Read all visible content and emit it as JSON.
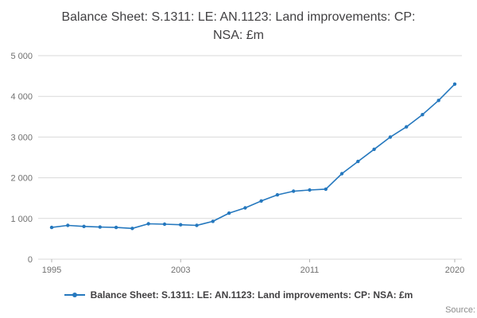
{
  "title": "Balance Sheet: S.1311: LE: AN.1123: Land improvements: CP: NSA: £m",
  "legend": {
    "label": "Balance Sheet: S.1311: LE: AN.1123: Land improvements: CP: NSA: £m"
  },
  "source_label": "Source:",
  "colors": {
    "line": "#2578be",
    "grid": "#d9d9d9",
    "tick_text": "#707070",
    "title_text": "#414042"
  },
  "chart_data": {
    "type": "line",
    "title": "Balance Sheet: S.1311: LE: AN.1123: Land improvements: CP: NSA: £m",
    "x": [
      1995,
      1996,
      1997,
      1998,
      1999,
      2000,
      2001,
      2002,
      2003,
      2004,
      2005,
      2006,
      2007,
      2008,
      2009,
      2010,
      2011,
      2012,
      2013,
      2014,
      2015,
      2016,
      2017,
      2018,
      2019,
      2020
    ],
    "series": [
      {
        "name": "Balance Sheet: S.1311: LE: AN.1123: Land improvements: CP: NSA: £m",
        "values": [
          780,
          830,
          805,
          790,
          780,
          755,
          870,
          860,
          845,
          830,
          930,
          1130,
          1260,
          1430,
          1580,
          1670,
          1700,
          1720,
          2100,
          2400,
          2700,
          3000,
          3250,
          3550,
          3900,
          4300
        ]
      }
    ],
    "xlabel": "",
    "ylabel": "",
    "ylim": [
      0,
      5000
    ],
    "ytick_step": 1000,
    "yticks": [
      0,
      1000,
      2000,
      3000,
      4000,
      5000
    ],
    "xticks": [
      1995,
      2003,
      2011,
      2020
    ],
    "grid": "horizontal",
    "legend_position": "bottom",
    "marker": "circle"
  }
}
